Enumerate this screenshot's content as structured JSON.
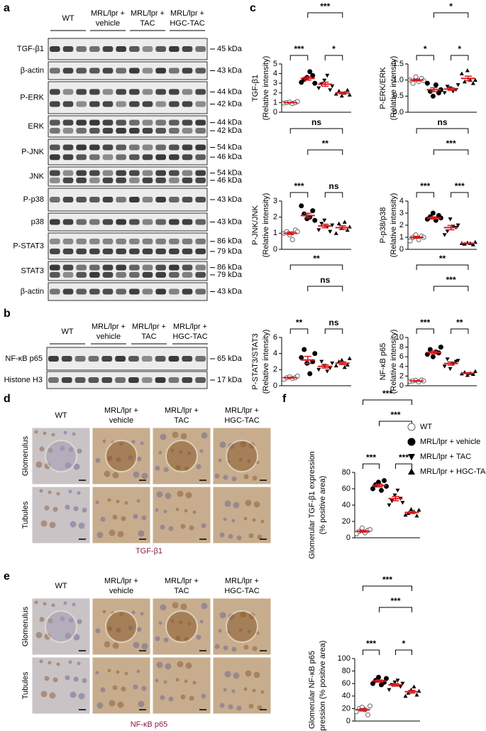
{
  "panel_labels": [
    "a",
    "b",
    "c",
    "d",
    "e",
    "f"
  ],
  "blot_a": {
    "groups": [
      [
        "WT"
      ],
      [
        "MRL/lpr +",
        "vehicle"
      ],
      [
        "MRL/lpr +",
        "TAC"
      ],
      [
        "MRL/lpr +",
        "HGC-TAC"
      ]
    ],
    "rows": [
      {
        "label": "TGF-β1",
        "kda": [
          "45 kDa"
        ]
      },
      {
        "label": "β-actin",
        "kda": [
          "43 kDa"
        ]
      },
      {
        "label": "P-ERK",
        "kda": [
          "44 kDa",
          "42 kDa"
        ]
      },
      {
        "label": "ERK",
        "kda": [
          "44 kDa",
          "42 kDa"
        ]
      },
      {
        "label": "P-JNK",
        "kda": [
          "54 kDa",
          "46 kDa"
        ]
      },
      {
        "label": "JNK",
        "kda": [
          "54 kDa",
          "46 kDa"
        ]
      },
      {
        "label": "P-p38",
        "kda": [
          "43 kDa"
        ]
      },
      {
        "label": "p38",
        "kda": [
          "43 kDa"
        ]
      },
      {
        "label": "P-STAT3",
        "kda": [
          "86 kDa",
          "79 kDa"
        ]
      },
      {
        "label": "STAT3",
        "kda": [
          "86 kDa",
          "79 kDa"
        ]
      },
      {
        "label": "β-actin",
        "kda": [
          "43 kDa"
        ]
      }
    ]
  },
  "blot_b": {
    "groups": [
      [
        "WT"
      ],
      [
        "MRL/lpr +",
        "vehicle"
      ],
      [
        "MRL/lpr +",
        "TAC"
      ],
      [
        "MRL/lpr +",
        "HGC-TAC"
      ]
    ],
    "rows": [
      {
        "label": "NF-κB p65",
        "kda": [
          "65 kDa"
        ]
      },
      {
        "label": "Histone H3",
        "kda": [
          "17 kDa"
        ]
      }
    ]
  },
  "panel_d": {
    "columns": [
      [
        "WT"
      ],
      [
        "MRL/lpr +",
        "vehicle"
      ],
      [
        "MRL/lpr +",
        "TAC"
      ],
      [
        "MRL/lpr +",
        "HGC-TAC"
      ]
    ],
    "rows": [
      "Glomerulus",
      "Tubules"
    ],
    "caption": "TGF-β1"
  },
  "panel_e": {
    "columns": [
      [
        "WT"
      ],
      [
        "MRL/lpr +",
        "vehicle"
      ],
      [
        "MRL/lpr +",
        "TAC"
      ],
      [
        "MRL/lpr +",
        "HGC-TAC"
      ]
    ],
    "rows": [
      "Glomerulus",
      "Tubules"
    ],
    "caption": "NF-κB p65"
  },
  "legend": [
    {
      "label": "WT",
      "marker": "circle-open",
      "color": "#666666"
    },
    {
      "label": "MRL/lpr + vehicle",
      "marker": "circle",
      "color": "#000000"
    },
    {
      "label": "MRL/lpr + TAC",
      "marker": "triangle-down",
      "color": "#000000"
    },
    {
      "label": "MRL/lpr + HGC-TAC",
      "marker": "triangle-up",
      "color": "#000000"
    }
  ],
  "mean_color": "#d7191c",
  "chart_data": [
    {
      "type": "dotplot",
      "ylabel": [
        "TGF-β1",
        "(Relative intensity)"
      ],
      "ylim": [
        0,
        5
      ],
      "yticks": [
        0,
        1,
        2,
        3,
        4,
        5
      ],
      "points": [
        [
          0.95,
          1.0,
          1.05,
          0.9,
          1.0,
          1.1
        ],
        [
          3.1,
          3.4,
          3.6,
          4.2,
          3.8,
          3.0
        ],
        [
          2.5,
          2.9,
          3.3,
          3.8,
          2.3,
          2.7
        ],
        [
          1.9,
          2.2,
          1.7,
          2.0,
          2.3,
          1.8
        ]
      ],
      "means": [
        1.0,
        3.5,
        2.9,
        2.0
      ],
      "sems": [
        0.03,
        0.18,
        0.22,
        0.09
      ],
      "brackets": [
        {
          "groups": [
            0,
            3
          ],
          "label": "**"
        },
        {
          "groups": [
            1,
            3
          ],
          "label": "***"
        },
        {
          "groups": [
            0,
            1
          ],
          "label": "***"
        },
        {
          "groups": [
            2,
            3
          ],
          "label": "*"
        }
      ]
    },
    {
      "type": "dotplot",
      "ylabel": [
        "P-ERK/ERK",
        "(Relative intensity)"
      ],
      "ylim": [
        0,
        1.5
      ],
      "yticks": [
        {
          "value": 0,
          "label": "0.0"
        },
        0.5,
        {
          "value": 1,
          "label": "1.0"
        },
        1.5
      ],
      "points": [
        [
          1.0,
          0.9,
          1.1,
          0.95,
          1.05,
          0.98
        ],
        [
          0.9,
          0.65,
          0.5,
          0.85,
          0.6,
          0.7
        ],
        [
          0.6,
          0.8,
          0.75,
          0.65,
          0.7,
          0.85
        ],
        [
          1.2,
          0.95,
          1.3,
          1.0,
          0.9,
          1.0
        ]
      ],
      "means": [
        1.0,
        0.7,
        0.72,
        1.05
      ],
      "sems": [
        0.03,
        0.06,
        0.04,
        0.07
      ],
      "brackets": [
        {
          "groups": [
            0,
            3
          ],
          "label": "ns"
        },
        {
          "groups": [
            1,
            3
          ],
          "label": "*"
        },
        {
          "groups": [
            0,
            1
          ],
          "label": "*"
        },
        {
          "groups": [
            2,
            3
          ],
          "label": "*"
        }
      ]
    },
    {
      "type": "dotplot",
      "ylabel": [
        "P-JNK/JNK",
        "(Relative intensity)"
      ],
      "ylim": [
        0,
        3
      ],
      "yticks": [
        0,
        1,
        2,
        3
      ],
      "points": [
        [
          1.0,
          1.1,
          0.9,
          0.6,
          1.2,
          1.1
        ],
        [
          2.7,
          2.2,
          1.9,
          2.0,
          2.4,
          1.8
        ],
        [
          1.2,
          1.6,
          1.8,
          1.4,
          1.1,
          1.5
        ],
        [
          1.0,
          1.6,
          1.3,
          1.7,
          1.2,
          1.4
        ]
      ],
      "means": [
        1.0,
        2.1,
        1.45,
        1.35
      ],
      "sems": [
        0.08,
        0.14,
        0.11,
        0.11
      ],
      "brackets": [
        {
          "groups": [
            0,
            3
          ],
          "label": "ns"
        },
        {
          "groups": [
            1,
            3
          ],
          "label": "**"
        },
        {
          "groups": [
            0,
            1
          ],
          "label": "***"
        },
        {
          "groups": [
            2,
            3
          ],
          "label": "ns"
        }
      ]
    },
    {
      "type": "dotplot",
      "ylabel": [
        "P-p38/p38",
        "(Relative intensity)"
      ],
      "ylim": [
        0,
        4
      ],
      "yticks": [
        0,
        1,
        2,
        3,
        4
      ],
      "points": [
        [
          0.7,
          1.0,
          1.2,
          0.8,
          1.1,
          1.0
        ],
        [
          2.5,
          2.7,
          3.0,
          2.4,
          2.8,
          2.6
        ],
        [
          1.2,
          1.5,
          2.5,
          1.9,
          1.8,
          2.0
        ],
        [
          0.5,
          0.45,
          0.55,
          0.5,
          0.4,
          0.6
        ]
      ],
      "means": [
        1.0,
        2.6,
        1.8,
        0.5
      ],
      "sems": [
        0.08,
        0.09,
        0.18,
        0.03
      ],
      "brackets": [
        {
          "groups": [
            0,
            3
          ],
          "label": "ns"
        },
        {
          "groups": [
            1,
            3
          ],
          "label": "***"
        },
        {
          "groups": [
            0,
            1
          ],
          "label": "***"
        },
        {
          "groups": [
            2,
            3
          ],
          "label": "***"
        }
      ]
    },
    {
      "type": "dotplot",
      "ylabel": [
        "P-STAT3/STAT3",
        "(Relative intensity)"
      ],
      "ylim": [
        0,
        6
      ],
      "yticks": [
        0,
        2,
        4,
        6
      ],
      "points": [
        [
          0.8,
          1.0,
          1.1,
          0.9,
          1.0,
          1.2
        ],
        [
          3.5,
          4.5,
          2.8,
          1.5,
          3.0,
          4.0
        ],
        [
          2.0,
          3.0,
          2.5,
          1.8,
          2.2,
          2.8
        ],
        [
          2.5,
          3.0,
          3.2,
          2.3,
          2.6,
          3.4
        ]
      ],
      "means": [
        1.0,
        3.2,
        2.4,
        2.8
      ],
      "sems": [
        0.06,
        0.45,
        0.2,
        0.18
      ],
      "brackets": [
        {
          "groups": [
            0,
            3
          ],
          "label": "**"
        },
        {
          "groups": [
            1,
            3
          ],
          "label": "ns"
        },
        {
          "groups": [
            0,
            1
          ],
          "label": "**"
        },
        {
          "groups": [
            2,
            3
          ],
          "label": "ns"
        }
      ]
    },
    {
      "type": "dotplot",
      "ylabel": [
        "NF-κB p65",
        "(Relative intensity)"
      ],
      "ylim": [
        0,
        10
      ],
      "yticks": [
        0,
        2,
        4,
        6,
        8,
        10
      ],
      "points": [
        [
          0.9,
          1.0,
          1.1,
          0.8,
          1.2,
          1.0
        ],
        [
          6.5,
          7.5,
          6.0,
          7.0,
          6.8,
          8.0
        ],
        [
          4.0,
          5.5,
          3.5,
          4.5,
          5.0,
          5.2
        ],
        [
          2.5,
          2.8,
          2.2,
          2.6,
          2.4,
          3.0
        ]
      ],
      "means": [
        1.0,
        6.9,
        4.6,
        2.6
      ],
      "sems": [
        0.06,
        0.29,
        0.33,
        0.12
      ],
      "brackets": [
        {
          "groups": [
            0,
            3
          ],
          "label": "**"
        },
        {
          "groups": [
            1,
            3
          ],
          "label": "***"
        },
        {
          "groups": [
            0,
            1
          ],
          "label": "***"
        },
        {
          "groups": [
            2,
            3
          ],
          "label": "**"
        }
      ]
    },
    {
      "type": "dotplot",
      "ylabel": [
        "Glomerular TGF-β1 expression",
        "(% positive area)"
      ],
      "ylim": [
        0,
        80
      ],
      "yticks": [
        0,
        20,
        40,
        60,
        80
      ],
      "points": [
        [
          5,
          8,
          12,
          6,
          9,
          10
        ],
        [
          60,
          65,
          68,
          58,
          70,
          63
        ],
        [
          40,
          45,
          52,
          58,
          48,
          43
        ],
        [
          28,
          30,
          35,
          32,
          27,
          34
        ]
      ],
      "means": [
        8,
        64,
        48,
        31
      ],
      "sems": [
        1.1,
        1.8,
        2.7,
        1.3
      ],
      "brackets": [
        {
          "groups": [
            0,
            3
          ],
          "label": "***"
        },
        {
          "groups": [
            1,
            3
          ],
          "label": "***"
        },
        {
          "groups": [
            0,
            1
          ],
          "label": "***"
        },
        {
          "groups": [
            2,
            3
          ],
          "label": "***"
        }
      ]
    },
    {
      "type": "dotplot",
      "ylabel": [
        "Glomerular NF-κB p65",
        "expression (% positive area)"
      ],
      "ylim": [
        0,
        100
      ],
      "yticks": [
        0,
        20,
        40,
        60,
        80,
        100
      ],
      "points": [
        [
          15,
          20,
          22,
          18,
          10,
          24
        ],
        [
          60,
          65,
          70,
          58,
          62,
          68
        ],
        [
          50,
          58,
          62,
          65,
          55,
          60
        ],
        [
          40,
          45,
          50,
          55,
          42,
          48
        ]
      ],
      "means": [
        18,
        64,
        58,
        47
      ],
      "sems": [
        2.0,
        1.8,
        2.2,
        2.2
      ],
      "brackets": [
        {
          "groups": [
            0,
            3
          ],
          "label": "***"
        },
        {
          "groups": [
            1,
            3
          ],
          "label": "***"
        },
        {
          "groups": [
            0,
            1
          ],
          "label": "***"
        },
        {
          "groups": [
            2,
            3
          ],
          "label": "*"
        }
      ]
    }
  ]
}
